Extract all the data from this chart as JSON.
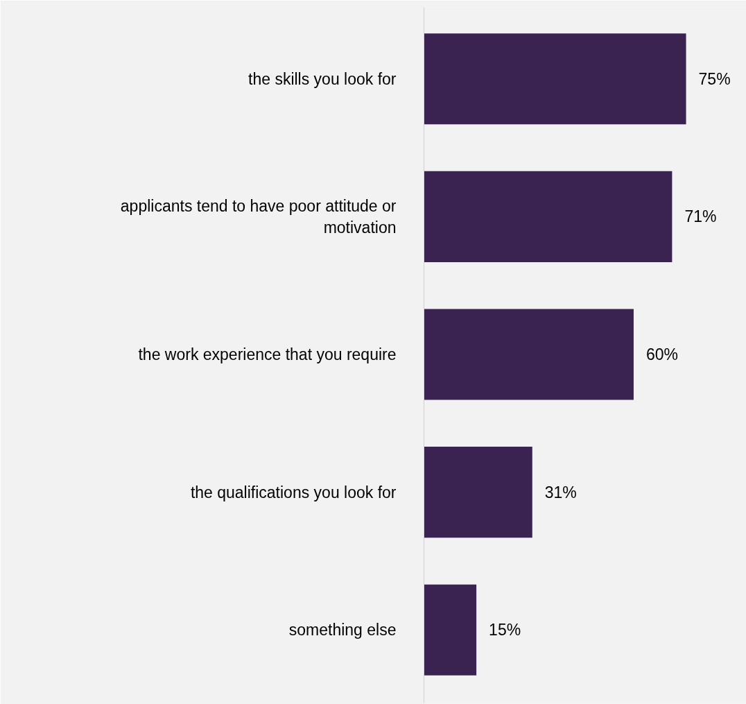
{
  "chart_data": {
    "type": "bar",
    "orientation": "horizontal",
    "categories": [
      "the skills you look for",
      "applicants tend to have poor attitude or motivation",
      "the work experience that you require",
      "the qualifications you look for",
      "something else"
    ],
    "values": [
      75,
      71,
      60,
      31,
      15
    ],
    "value_labels": [
      "75%",
      "71%",
      "60%",
      "31%",
      "15%"
    ],
    "color": "#3a2350"
  }
}
